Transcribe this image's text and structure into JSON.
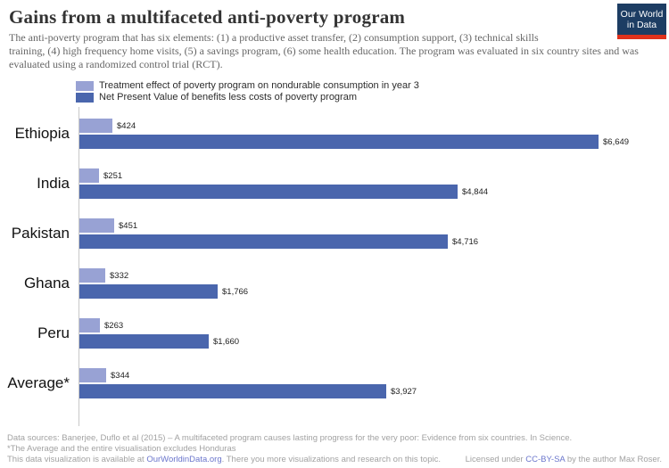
{
  "header": {
    "title": "Gains from a multifaceted anti-poverty program",
    "subtitle_lines": [
      "The anti-poverty program that has six elements: (1) a productive asset transfer, (2) consumption support, (3) technical skills",
      "training, (4) high frequency home visits, (5) a savings program, (6) some health education. The program was evaluated in six country sites and was",
      "evaluated using a randomized control trial (RCT)."
    ],
    "logo": {
      "line1": "Our World",
      "line2": "in Data",
      "bg_color": "#1d3d63",
      "accent_color": "#e0321c"
    }
  },
  "legend": [
    {
      "label": "Treatment effect of poverty program on nondurable consumption in year 3",
      "color": "#98a2d4"
    },
    {
      "label": "Net Present Value of benefits less costs of poverty program",
      "color": "#4a66ad"
    }
  ],
  "chart_data": {
    "type": "bar",
    "orientation": "horizontal",
    "title": "Gains from a multifaceted anti-poverty program",
    "categories": [
      "Ethiopia",
      "India",
      "Pakistan",
      "Ghana",
      "Peru",
      "Average*"
    ],
    "series": [
      {
        "name": "Treatment effect of poverty program on nondurable consumption in year 3",
        "color": "#98a2d4",
        "values": [
          424,
          251,
          451,
          332,
          263,
          344
        ],
        "value_labels": [
          "$424",
          "$251",
          "$451",
          "$332",
          "$263",
          "$344"
        ]
      },
      {
        "name": "Net Present Value of benefits less costs of poverty program",
        "color": "#4a66ad",
        "values": [
          6649,
          4844,
          4716,
          1766,
          1660,
          3927
        ],
        "value_labels": [
          "$6,649",
          "$4,844",
          "$4,716",
          "$1,766",
          "$1,660",
          "$3,927"
        ]
      }
    ],
    "value_prefix": "$",
    "xlim": [
      0,
      6649
    ],
    "grid": false,
    "legend_position": "top-left"
  },
  "footer": {
    "line1": "Data sources: Banerjee, Duflo et al (2015) – A multifaceted program causes lasting progress for the very poor: Evidence from six countries. In Science.",
    "line2": "*The Average and the entire visualisation excludes Honduras",
    "line3_pre": "This data visualization is available at ",
    "line3_link": "OurWorldinData.org",
    "line3_post": ". There you more visualizations and research on this topic.",
    "license_pre": "Licensed under ",
    "license_link": "CC-BY-SA",
    "license_post": " by the author Max Roser."
  }
}
